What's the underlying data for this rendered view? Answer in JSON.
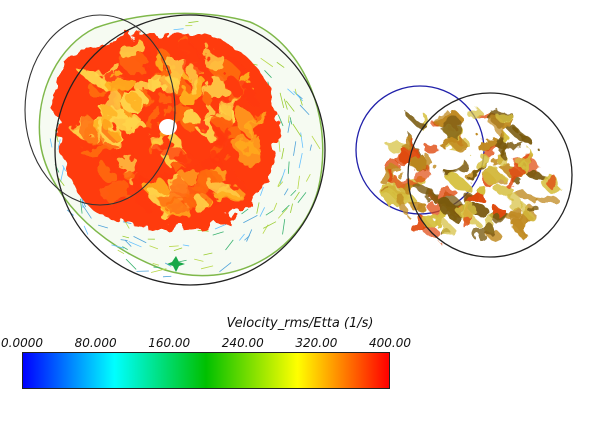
{
  "legend": {
    "title": "Velocity_rms/Etta (1/s)",
    "ticks": [
      "0.0000",
      "80.000",
      "160.00",
      "240.00",
      "320.00",
      "400.00"
    ],
    "range": [
      0,
      400
    ],
    "colormap": [
      "#0000ff",
      "#00ffff",
      "#00c000",
      "#ffff00",
      "#ff0000"
    ]
  },
  "views": [
    {
      "name": "left-render",
      "palette": [
        "#ff3a10",
        "#ff6a10",
        "#ffb020",
        "#ffd54a"
      ]
    },
    {
      "name": "right-render",
      "palette": [
        "#e04a10",
        "#c08a20",
        "#d6c040",
        "#7a5a10"
      ]
    }
  ]
}
